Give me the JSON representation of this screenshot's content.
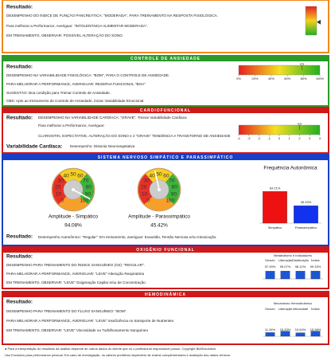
{
  "glicose": {
    "result_label": "Resultado:",
    "lines": [
      "DESEMPENHO DO ÍNDICE DE FUNÇÃO PANCREÁTICA: \"MODERADA\", PARA TREINAMENTO NA RESPOSTA FISIOLÓGICA.",
      "Para melhorar a Performance, Averiguar: \"INTOLERÂNCIA ALIMENTAR MODERADA\".",
      "EM TREINAMENTO, OBSERVAR: POSSÍVEL ALTERAÇÃO DO SONO."
    ],
    "indicator": {
      "value": 9,
      "ylim": [
        0,
        20
      ]
    }
  },
  "anxiety": {
    "title": "CONTROLE DE ANSIEDADE",
    "result_label": "Resultado:",
    "lines": [
      "DESEMPENHO NA VARIABILIDADE FISIOLÓGICA: \"BOM\", PARA O CONTROLE DE ANSIEDADE.",
      "PARA MELHORAR A PERFORMANCE, AVERIGUAR: RESERVA FUNCIONAL \"BOA\"",
      "SUGESTÃO: Boa condição para Treinar Controle de Ansiedade.",
      "OBS: Apto ao treinamento de Controle de Ansiedade, iniciar Variabilidade Emocional."
    ],
    "scale": {
      "value": 78,
      "xlim": [
        0,
        100
      ],
      "xticks": [
        {
          "value": 0,
          "label": "0%"
        },
        {
          "value": 20,
          "label": "20%"
        },
        {
          "value": 40,
          "label": "40%"
        },
        {
          "value": 60,
          "label": "60%"
        },
        {
          "value": 80,
          "label": "80%"
        },
        {
          "value": 100,
          "label": "100%"
        }
      ]
    }
  },
  "cardio": {
    "title": "CARDIOFUNCIONAL",
    "result_label": "Resultado:",
    "lines": [
      "DESEMPENHO NA VARIABILIDADE CARDÍACA: \"GRAVE\". Treinar Variabilidade Cardíaca",
      "Para melhorar a Performance, Averiguar:",
      "CLARIOSTIN, EXPECTATIVE, ALTERAÇÃO DO SONO e 2 \"GRAVE\" TENDÊNCIA A TRANSTORNO DE ANSIEDADE"
    ],
    "variability_label": "Variabilidade Cardíaca:",
    "variability_text": "Desempenho: Distonia Neurovegetativa",
    "scale": {
      "value": 2,
      "xlim": [
        -4,
        4
      ],
      "xticks": [
        -4,
        -3,
        -2,
        -1,
        0,
        1,
        2,
        3,
        4
      ]
    }
  },
  "autonomic": {
    "title": "SISTEMA NERVOSO SIMPÁTICO E PARASSIMPÁTICO",
    "gauge_lim": [
      0,
      100
    ],
    "gauge_ticks": [
      0,
      10,
      20,
      30,
      40,
      50,
      60,
      70,
      80,
      90,
      100
    ],
    "gauges": [
      {
        "label": "Amplitude - Simpático",
        "value": 94.08,
        "value_label": "94.08%"
      },
      {
        "label": "Amplitude - Parassimpático",
        "value": 45.42,
        "value_label": "45.42%"
      }
    ],
    "chart": {
      "type": "bar",
      "title": "Frequência Autonômica",
      "categories": [
        "Simpático",
        "Parassimpático"
      ],
      "values": [
        64.21,
        35.33
      ],
      "value_labels": [
        "64.21%",
        "35.33%"
      ],
      "colors": [
        "#ee1111",
        "#1133ee"
      ],
      "ylim": [
        0,
        100
      ]
    },
    "result_label": "Resultado:",
    "result": "Desempenho Autonômico: \"Regular\". Em treinamento, averiguar: Exaustão, Tensão Nervosa e/ou Intoxicação."
  },
  "oxygen": {
    "title": "OXIGÊNIO FUNCIONAL",
    "result_label": "Resultado:",
    "lines": [
      "DESEMPENHO PARA TREINAMENTO DO ÍNDICE SANGUÍNEO (O2): \"REGULAR\".",
      "PARA MELHORAR A PERFORMANCE, AVERIGUAR: \"LEVE\" Alteração Respiratória",
      "EM TREINAMENTO, OBSERVAR: \"LEVE\" Oxigenação Capilar e/ou de Concentração"
    ],
    "chart": {
      "type": "bar",
      "title": "Metabolismo e Indicadores",
      "categories": [
        "Desvio",
        "Liberação",
        "Distribuição",
        "Índice"
      ],
      "values": [
        97.39,
        99.07,
        98.12,
        99.33
      ],
      "value_labels": [
        "97.39%",
        "99.07%",
        "98.12%",
        "99.33%"
      ],
      "colors": [
        "#1a56d6",
        "#1a56d6",
        "#1a56d6",
        "#1a56d6"
      ],
      "ylim": [
        0,
        100
      ]
    }
  },
  "hemo": {
    "title": "HEMODINÂMICA",
    "result_label": "Resultado:",
    "lines": [
      "DESEMPENHO PARA TREINAMENTO DO FLUXO SANGUÍNEO: \"BOM\".",
      "PARA MELHORAR A PERFORMANCE, AVERIGUAR: \"LEVE\" insuficiência no transporte de Nutrientes.",
      "EM TREINAMENTO, OBSERVAR: \"LEVE\" Viscosidade ou Turbilhonamento Sanguíneo"
    ],
    "chart": {
      "type": "bar",
      "title": "Mecanismo Hemodinâmico",
      "categories": [
        "Desvio",
        "Liberação",
        "Velocidade",
        "Índice"
      ],
      "values": [
        11.34,
        15.33,
        10.54,
        15.38
      ],
      "value_labels": [
        "11.34%",
        "15.33%",
        "10.54%",
        "15.38%"
      ],
      "colors": [
        "#1a56d6",
        "#1a56d6",
        "#1a56d6",
        "#1a56d6"
      ],
      "ylim": [
        0,
        100
      ]
    }
  },
  "footer": [
    "● Para a interpretação do resultado da análise depende de outros dados do cliente que só o profissional responsável possui. Copyright BioResolution.",
    "Uso Exclusivo para performance pessoal. Em caso de investigação, os valores preditivos dependem de exame complementares e avaliação dos dados clínicos."
  ]
}
